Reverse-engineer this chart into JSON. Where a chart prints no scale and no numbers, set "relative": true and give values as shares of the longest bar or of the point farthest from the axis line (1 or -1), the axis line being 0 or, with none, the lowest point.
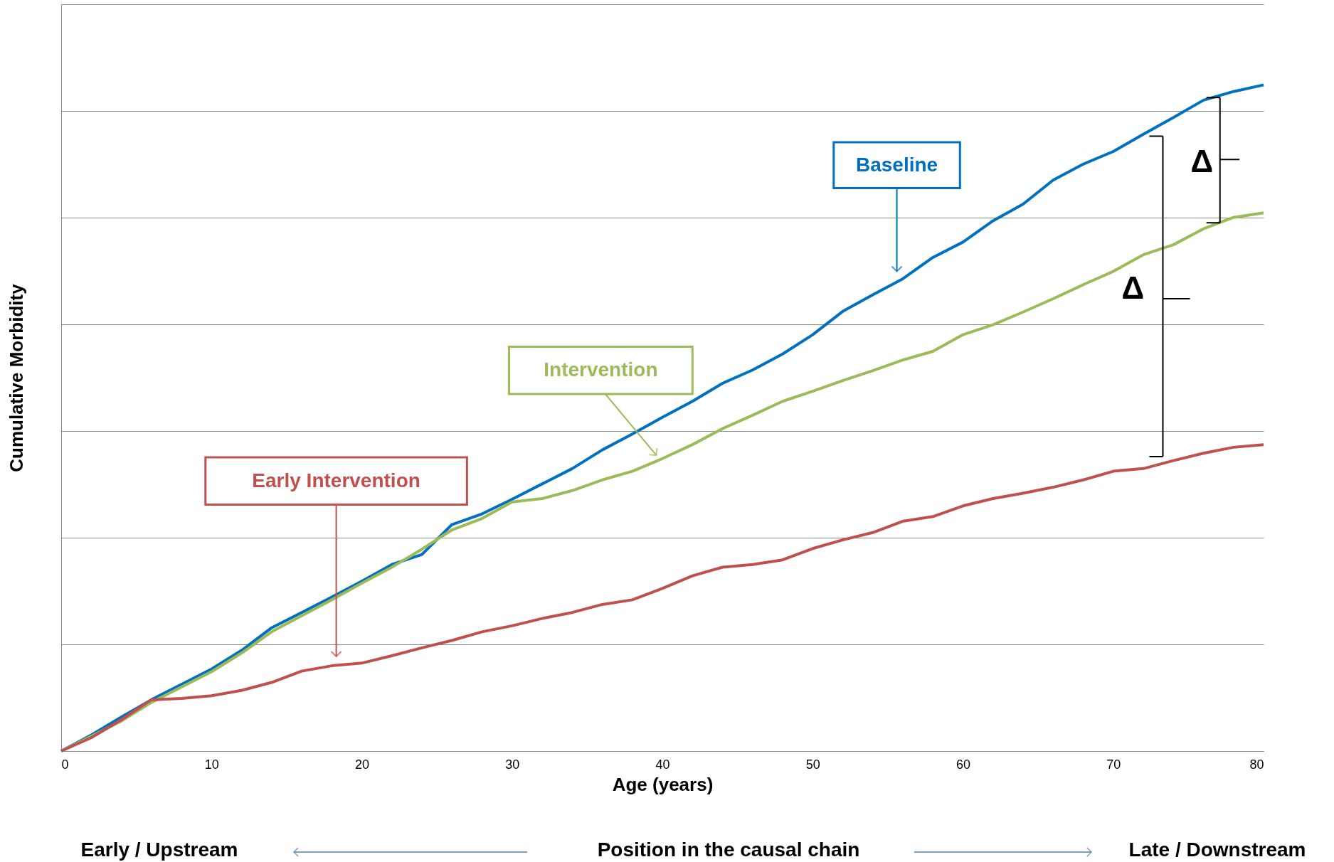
{
  "chart_data": {
    "type": "line",
    "relative": true,
    "xlabel": "Age (years)",
    "ylabel": "Cumulative Morbidity",
    "xlim": [
      0,
      80
    ],
    "xticks": [
      0,
      10,
      20,
      30,
      40,
      50,
      60,
      70,
      80
    ],
    "grid": "y",
    "marker": "none",
    "line_style": "solid",
    "x": [
      0,
      2,
      4,
      6,
      8,
      10,
      12,
      14,
      16,
      18,
      20,
      22,
      24,
      26,
      28,
      30,
      32,
      34,
      36,
      38,
      40,
      42,
      44,
      46,
      48,
      50,
      52,
      54,
      56,
      58,
      60,
      62,
      64,
      66,
      68,
      70,
      72,
      74,
      76,
      78,
      80
    ],
    "series": [
      {
        "name": "Baseline",
        "color": "#0070c0",
        "values": [
          0,
          0.024,
          0.051,
          0.077,
          0.1,
          0.123,
          0.151,
          0.185,
          0.208,
          0.231,
          0.255,
          0.28,
          0.295,
          0.34,
          0.356,
          0.378,
          0.401,
          0.424,
          0.452,
          0.476,
          0.501,
          0.525,
          0.552,
          0.572,
          0.596,
          0.625,
          0.66,
          0.685,
          0.709,
          0.741,
          0.764,
          0.796,
          0.821,
          0.857,
          0.881,
          0.9,
          0.926,
          0.951,
          0.977,
          0.99,
          1
        ]
      },
      {
        "name": "Intervention",
        "color": "#9bbb59",
        "values": [
          0,
          0.022,
          0.045,
          0.073,
          0.096,
          0.119,
          0.147,
          0.179,
          0.203,
          0.227,
          0.252,
          0.276,
          0.303,
          0.332,
          0.349,
          0.374,
          0.379,
          0.391,
          0.407,
          0.42,
          0.439,
          0.46,
          0.484,
          0.504,
          0.525,
          0.54,
          0.556,
          0.571,
          0.587,
          0.6,
          0.625,
          0.64,
          0.659,
          0.679,
          0.7,
          0.72,
          0.745,
          0.76,
          0.784,
          0.801,
          0.808
        ]
      },
      {
        "name": "Early Intervention",
        "color": "#c0504d",
        "values": [
          0,
          0.02,
          0.047,
          0.077,
          0.079,
          0.083,
          0.091,
          0.103,
          0.12,
          0.128,
          0.132,
          0.143,
          0.155,
          0.166,
          0.179,
          0.188,
          0.199,
          0.208,
          0.22,
          0.227,
          0.244,
          0.263,
          0.276,
          0.28,
          0.287,
          0.304,
          0.317,
          0.328,
          0.345,
          0.352,
          0.368,
          0.379,
          0.387,
          0.396,
          0.407,
          0.42,
          0.424,
          0.436,
          0.447,
          0.456,
          0.46
        ]
      }
    ],
    "annotations": [
      "Δ",
      "Δ",
      "Early / Upstream",
      "Position in the causal chain",
      "Late  / Downstream"
    ]
  }
}
